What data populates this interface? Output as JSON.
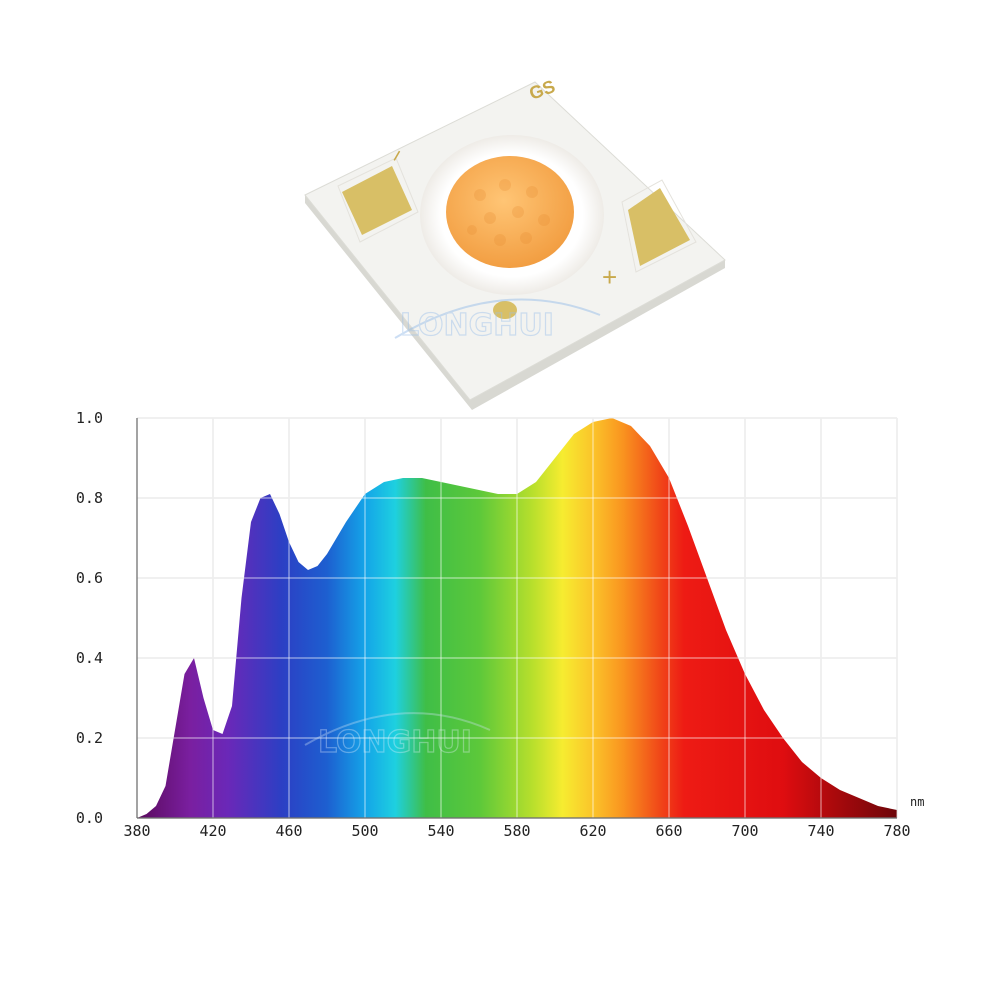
{
  "product": {
    "chip_marking": "GS",
    "negative_symbol": "−",
    "positive_symbol": "+",
    "watermark": "LONGHUI",
    "emitter_color": "#f6a84e",
    "substrate_color": "#f1f1ee",
    "pad_color": "#d9c06a"
  },
  "chart_data": {
    "type": "area",
    "title": "",
    "xlabel": "nm",
    "ylabel": "",
    "xlim": [
      380,
      780
    ],
    "ylim": [
      0,
      1.0
    ],
    "x_ticks": [
      "380",
      "420",
      "460",
      "500",
      "540",
      "580",
      "620",
      "660",
      "700",
      "740",
      "780"
    ],
    "y_ticks": [
      "0.0",
      "0.2",
      "0.4",
      "0.6",
      "0.8",
      "1.0"
    ],
    "grid": true,
    "legend": "none",
    "fill": "wavelength-colored spectrum",
    "series": [
      {
        "x": [
          380,
          385,
          390,
          395,
          400,
          405,
          410,
          415,
          420,
          425,
          430,
          435,
          440,
          445,
          450,
          455,
          460,
          465,
          470,
          475,
          480,
          490,
          500,
          510,
          520,
          530,
          540,
          550,
          560,
          570,
          580,
          590,
          600,
          610,
          620,
          630,
          640,
          650,
          660,
          670,
          680,
          690,
          700,
          710,
          720,
          730,
          740,
          750,
          760,
          770,
          780
        ],
        "values": [
          0.0,
          0.01,
          0.03,
          0.08,
          0.22,
          0.36,
          0.4,
          0.3,
          0.22,
          0.21,
          0.28,
          0.55,
          0.74,
          0.8,
          0.81,
          0.76,
          0.69,
          0.64,
          0.62,
          0.63,
          0.66,
          0.74,
          0.81,
          0.84,
          0.85,
          0.85,
          0.84,
          0.83,
          0.82,
          0.81,
          0.81,
          0.84,
          0.9,
          0.96,
          0.99,
          1.0,
          0.98,
          0.93,
          0.85,
          0.73,
          0.6,
          0.47,
          0.36,
          0.27,
          0.2,
          0.14,
          0.1,
          0.07,
          0.05,
          0.03,
          0.02
        ]
      }
    ]
  }
}
